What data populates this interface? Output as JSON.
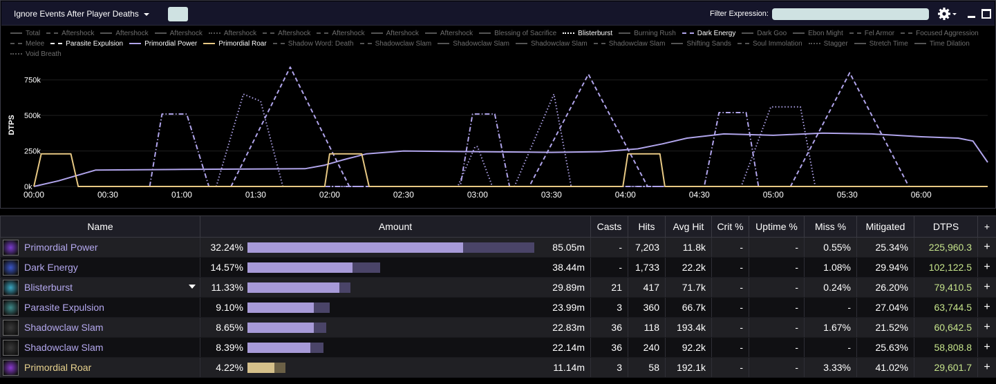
{
  "toolbar": {
    "mode_label": "Ignore Events After Player Deaths",
    "filter_label": "Filter Expression:",
    "filter_value": ""
  },
  "legend": [
    {
      "label": "Total",
      "style": "solid",
      "state": "inactive"
    },
    {
      "label": "Aftershock",
      "style": "dashdot",
      "state": "inactive"
    },
    {
      "label": "Aftershock",
      "style": "solid",
      "state": "inactive"
    },
    {
      "label": "Aftershock",
      "style": "solid",
      "state": "inactive"
    },
    {
      "label": "Aftershock",
      "style": "dot",
      "state": "inactive"
    },
    {
      "label": "Aftershock",
      "style": "dashdot",
      "state": "inactive"
    },
    {
      "label": "Aftershock",
      "style": "dashdot",
      "state": "inactive"
    },
    {
      "label": "Aftershock",
      "style": "solid",
      "state": "inactive"
    },
    {
      "label": "Aftershock",
      "style": "solid",
      "state": "inactive"
    },
    {
      "label": "Blessing of Sacrifice",
      "style": "solid",
      "state": "inactive"
    },
    {
      "label": "Blisterburst",
      "style": "dot",
      "state": "active"
    },
    {
      "label": "Burning Rush",
      "style": "solid",
      "state": "inactive"
    },
    {
      "label": "Dark Energy",
      "style": "dash",
      "state": "purple"
    },
    {
      "label": "Dark Goo",
      "style": "solid",
      "state": "inactive"
    },
    {
      "label": "Ebon Might",
      "style": "solid",
      "state": "inactive"
    },
    {
      "label": "Fel Armor",
      "style": "dashdot",
      "state": "inactive"
    },
    {
      "label": "Focused Aggression",
      "style": "dash",
      "state": "inactive"
    },
    {
      "label": "Melee",
      "style": "dash",
      "state": "inactive"
    },
    {
      "label": "Parasite Expulsion",
      "style": "dashdot",
      "state": "active"
    },
    {
      "label": "Primordial Power",
      "style": "solid",
      "state": "purple"
    },
    {
      "label": "Primordial Roar",
      "style": "solid",
      "state": "gold"
    },
    {
      "label": "Shadow Word: Death",
      "style": "dashdot",
      "state": "inactive"
    },
    {
      "label": "Shadowclaw Slam",
      "style": "dashdot",
      "state": "inactive"
    },
    {
      "label": "Shadowclaw Slam",
      "style": "solid",
      "state": "inactive"
    },
    {
      "label": "Shadowclaw Slam",
      "style": "solid",
      "state": "inactive"
    },
    {
      "label": "Shadowclaw Slam",
      "style": "dashdot",
      "state": "inactive"
    },
    {
      "label": "Shifting Sands",
      "style": "solid",
      "state": "inactive"
    },
    {
      "label": "Soul Immolation",
      "style": "dash",
      "state": "inactive"
    },
    {
      "label": "Stagger",
      "style": "dot",
      "state": "inactive"
    },
    {
      "label": "Stretch Time",
      "style": "solid",
      "state": "inactive"
    },
    {
      "label": "Time Dilation",
      "style": "solid",
      "state": "inactive"
    },
    {
      "label": "Void Breath",
      "style": "dot",
      "state": "inactive"
    }
  ],
  "chart_data": {
    "type": "line",
    "ylabel": "DTPS",
    "yticks": [
      "0k",
      "250k",
      "500k",
      "750k"
    ],
    "xticks": [
      "00:00",
      "00:30",
      "01:00",
      "01:30",
      "02:00",
      "02:30",
      "03:00",
      "03:30",
      "04:00",
      "04:30",
      "05:00",
      "05:30",
      "06:00"
    ],
    "xlim": [
      0,
      387
    ],
    "ylim": [
      0,
      870000
    ],
    "series": [
      {
        "name": "Primordial Power",
        "color": "#b1a5ec",
        "style": "solid",
        "points": [
          [
            0,
            0
          ],
          [
            10,
            40000
          ],
          [
            25,
            115000
          ],
          [
            60,
            120000
          ],
          [
            110,
            125000
          ],
          [
            118,
            150000
          ],
          [
            125,
            185000
          ],
          [
            135,
            230000
          ],
          [
            150,
            250000
          ],
          [
            180,
            245000
          ],
          [
            210,
            240000
          ],
          [
            230,
            245000
          ],
          [
            245,
            265000
          ],
          [
            255,
            300000
          ],
          [
            265,
            340000
          ],
          [
            280,
            370000
          ],
          [
            300,
            360000
          ],
          [
            320,
            375000
          ],
          [
            340,
            370000
          ],
          [
            360,
            350000
          ],
          [
            375,
            340000
          ],
          [
            381,
            320000
          ],
          [
            387,
            170000
          ]
        ]
      },
      {
        "name": "Dark Energy",
        "color": "#b1a5ec",
        "style": "dash",
        "points": [
          [
            80,
            0
          ],
          [
            104,
            840000
          ],
          [
            128,
            0
          ],
          [
            201,
            0
          ],
          [
            225,
            790000
          ],
          [
            249,
            0
          ],
          [
            307,
            0
          ],
          [
            331,
            800000
          ],
          [
            355,
            0
          ]
        ]
      },
      {
        "name": "Blisterburst",
        "color": "#b1a5ec",
        "style": "dot",
        "points": [
          [
            74,
            0
          ],
          [
            85,
            650000
          ],
          [
            92,
            600000
          ],
          [
            101,
            0
          ],
          [
            172,
            0
          ],
          [
            179,
            280000
          ],
          [
            180,
            280000
          ],
          [
            186,
            0
          ],
          [
            195,
            0
          ],
          [
            211,
            650000
          ],
          [
            218,
            0
          ],
          [
            287,
            0
          ],
          [
            299,
            560000
          ],
          [
            311,
            560000
          ],
          [
            317,
            0
          ]
        ]
      },
      {
        "name": "Parasite Expulsion",
        "color": "#b1a5ec",
        "style": "dashdot",
        "points": [
          [
            47,
            0
          ],
          [
            52,
            510000
          ],
          [
            62,
            510000
          ],
          [
            71,
            0
          ],
          [
            173,
            0
          ],
          [
            178,
            510000
          ],
          [
            187,
            510000
          ],
          [
            193,
            0
          ],
          [
            272,
            0
          ],
          [
            278,
            520000
          ],
          [
            289,
            520000
          ],
          [
            294,
            0
          ]
        ]
      },
      {
        "name": "Primordial Roar",
        "color": "#e8c984",
        "style": "solid",
        "points": [
          [
            0,
            0
          ],
          [
            3,
            230000
          ],
          [
            15,
            230000
          ],
          [
            18,
            0
          ],
          [
            118,
            0
          ],
          [
            120,
            230000
          ],
          [
            133,
            230000
          ],
          [
            136,
            0
          ],
          [
            239,
            0
          ],
          [
            241,
            230000
          ],
          [
            254,
            230000
          ],
          [
            256,
            0
          ],
          [
            387,
            0
          ]
        ]
      }
    ]
  },
  "table": {
    "headers": [
      "Name",
      "Amount",
      "Casts",
      "Hits",
      "Avg Hit",
      "Crit %",
      "Uptime %",
      "Miss %",
      "Mitigated",
      "DTPS",
      "+"
    ],
    "rows": [
      {
        "name": "Primordial Power",
        "icon": "primordial-power-icon",
        "icon_color": "#7a3ccf",
        "color": "purple",
        "pct": "32.24%",
        "fill": 0.7347,
        "total": 0.9765,
        "amount": "85.05m",
        "casts": "-",
        "hits": "7,203",
        "avg_hit": "11.8k",
        "crit": "-",
        "uptime": "-",
        "miss": "0.55%",
        "mitigated": "25.34%",
        "dtps": "225,960.3",
        "plus": "+"
      },
      {
        "name": "Dark Energy",
        "icon": "dark-energy-icon",
        "icon_color": "#3a55c8",
        "color": "purple",
        "pct": "14.57%",
        "fill": 0.3576,
        "total": 0.4518,
        "amount": "38.44m",
        "casts": "-",
        "hits": "1,733",
        "avg_hit": "22.2k",
        "crit": "-",
        "uptime": "-",
        "miss": "1.08%",
        "mitigated": "29.94%",
        "dtps": "102,122.5",
        "plus": "+"
      },
      {
        "name": "Blisterburst",
        "icon": "blisterburst-icon",
        "icon_color": "#3aa7c2",
        "color": "purple",
        "pct": "11.33%",
        "fill": 0.3129,
        "total": 0.3506,
        "amount": "29.89m",
        "casts": "21",
        "hits": "417",
        "avg_hit": "71.7k",
        "crit": "-",
        "uptime": "-",
        "miss": "0.24%",
        "mitigated": "26.20%",
        "dtps": "79,410.5",
        "plus": "+"
      },
      {
        "name": "Parasite Expulsion",
        "icon": "parasite-expulsion-icon",
        "icon_color": "#3e8a8a",
        "color": "purple",
        "pct": "9.10%",
        "fill": 0.2259,
        "total": 0.28,
        "amount": "23.99m",
        "casts": "3",
        "hits": "360",
        "avg_hit": "66.7k",
        "crit": "-",
        "uptime": "-",
        "miss": "-",
        "mitigated": "27.04%",
        "dtps": "63,744.5",
        "plus": "+"
      },
      {
        "name": "Shadowclaw Slam",
        "icon": "shadowclaw-slam-icon",
        "icon_color": "#3a3a3a",
        "color": "purple",
        "pct": "8.65%",
        "fill": 0.2259,
        "total": 0.2682,
        "amount": "22.83m",
        "casts": "36",
        "hits": "118",
        "avg_hit": "193.4k",
        "crit": "-",
        "uptime": "-",
        "miss": "1.67%",
        "mitigated": "21.52%",
        "dtps": "60,642.5",
        "plus": "+"
      },
      {
        "name": "Shadowclaw Slam",
        "icon": "shadowclaw-slam-icon",
        "icon_color": "#3a3a3a",
        "color": "purple",
        "pct": "8.39%",
        "fill": 0.2141,
        "total": 0.2588,
        "amount": "22.14m",
        "casts": "36",
        "hits": "240",
        "avg_hit": "92.2k",
        "crit": "-",
        "uptime": "-",
        "miss": "-",
        "mitigated": "25.63%",
        "dtps": "58,808.8",
        "plus": "+"
      },
      {
        "name": "Primordial Roar",
        "icon": "primordial-roar-icon",
        "icon_color": "#8a3ad0",
        "color": "gold",
        "pct": "4.22%",
        "fill": 0.0918,
        "total": 0.1294,
        "amount": "11.14m",
        "casts": "3",
        "hits": "58",
        "avg_hit": "192.1k",
        "crit": "-",
        "uptime": "-",
        "miss": "3.33%",
        "mitigated": "41.02%",
        "dtps": "29,601.7",
        "plus": "+"
      }
    ]
  }
}
